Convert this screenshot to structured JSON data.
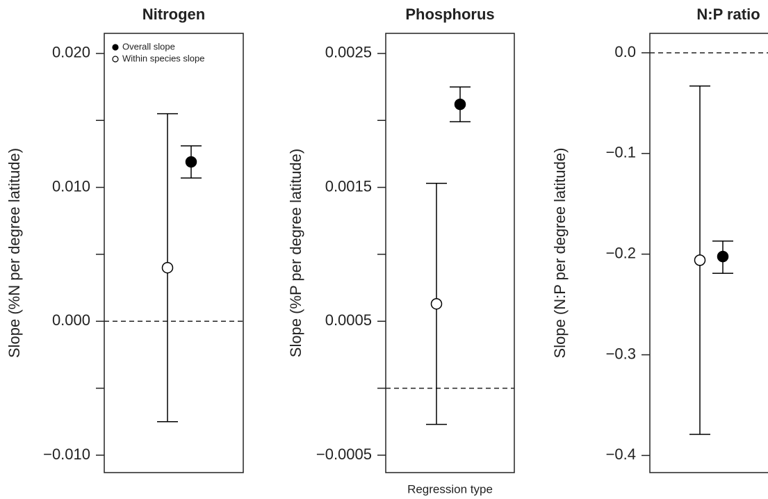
{
  "chart_data": [
    {
      "type": "errorbar",
      "title": "Nitrogen",
      "ylabel": "Slope (%N per degree latitude)",
      "ylim": [
        -0.0113,
        0.0215
      ],
      "yticks": [
        {
          "value": 0.02,
          "label": "0.020"
        },
        {
          "value": 0.01,
          "label": "0.010"
        },
        {
          "value": 0,
          "label": "0.000"
        },
        {
          "value": -0.01,
          "label": "−0.010"
        }
      ],
      "yminor_ticks": [
        0.015,
        0.005,
        -0.005
      ],
      "hline": 0,
      "legend": "top-left",
      "series": [
        {
          "name": "Overall slope",
          "marker": "filled",
          "color": "#000000",
          "values": [
            0.0119
          ],
          "lower": [
            0.0107
          ],
          "upper": [
            0.0131
          ]
        },
        {
          "name": "Within species slope",
          "marker": "open",
          "color": "#000000",
          "values": [
            0.004
          ],
          "lower": [
            -0.0075
          ],
          "upper": [
            0.0155
          ]
        }
      ]
    },
    {
      "type": "errorbar",
      "title": "Phosphorus",
      "ylabel": "Slope (%P per degree latitude)",
      "xlabel": "Regression type",
      "ylim": [
        -0.00063,
        0.00265
      ],
      "yticks": [
        0.0025,
        0.0015,
        0.0005,
        {
          "value": -0.0005,
          "label": "−0.0005"
        }
      ],
      "yminor_ticks": [
        0.002,
        0.001,
        0
      ],
      "hline": 0,
      "series": [
        {
          "marker": "filled",
          "color": "#000000",
          "values": [
            0.00212
          ],
          "lower": [
            0.00199
          ],
          "upper": [
            0.00225
          ]
        },
        {
          "marker": "open",
          "color": "#000000",
          "values": [
            0.00063
          ],
          "lower": [
            -0.00027
          ],
          "upper": [
            0.00153
          ]
        }
      ]
    },
    {
      "type": "errorbar",
      "title": "N:P ratio",
      "ylabel": "Slope (N:P per degree latitude)",
      "ylim": [
        -0.417,
        0.0193
      ],
      "yticks": [
        {
          "value": 0,
          "label": "0.0"
        },
        {
          "value": -0.1,
          "label": "−0.1"
        },
        {
          "value": -0.2,
          "label": "−0.2"
        },
        {
          "value": -0.3,
          "label": "−0.3"
        },
        {
          "value": -0.4,
          "label": "−0.4"
        }
      ],
      "hline": 0,
      "series": [
        {
          "marker": "filled",
          "color": "#000000",
          "values": [
            -0.2024
          ],
          "lower": [
            -0.219
          ],
          "upper": [
            -0.187
          ]
        },
        {
          "marker": "open",
          "color": "#000000",
          "values": [
            -0.206
          ],
          "lower": [
            -0.379
          ],
          "upper": [
            -0.033
          ]
        }
      ]
    }
  ]
}
